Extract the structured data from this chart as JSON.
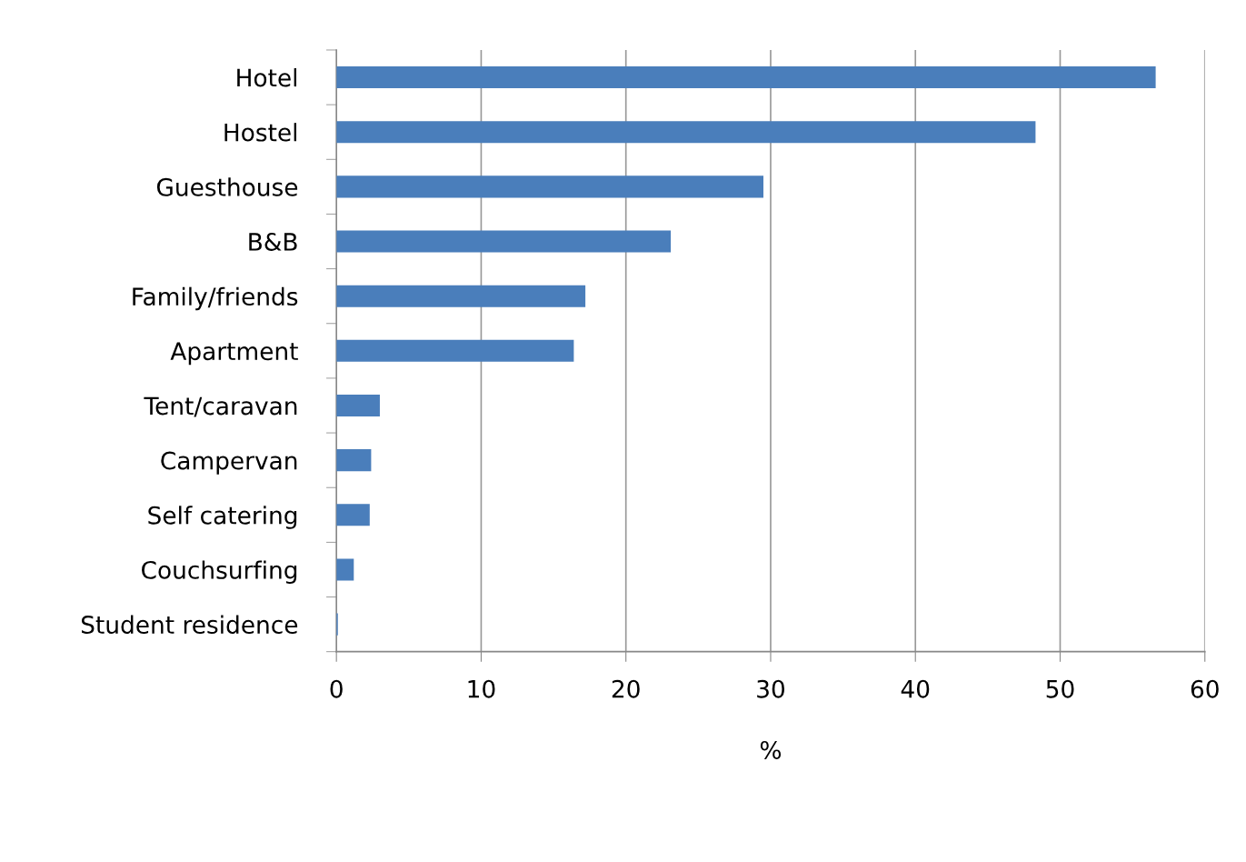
{
  "chart_data": {
    "type": "bar",
    "orientation": "horizontal",
    "xlabel": "%",
    "categories": [
      "Hotel",
      "Hostel",
      "Guesthouse",
      "B&B",
      "Family/friends",
      "Apartment",
      "Tent/caravan",
      "Campervan",
      "Self catering",
      "Couchsurfing",
      "Student residence"
    ],
    "values": [
      56.6,
      48.3,
      29.5,
      23.1,
      17.2,
      16.4,
      3.0,
      2.4,
      2.3,
      1.2,
      0.1
    ],
    "color": "#4a7ebb",
    "xlim": [
      0,
      60
    ],
    "xticks": [
      0,
      10,
      20,
      30,
      40,
      50,
      60
    ],
    "grid": "x"
  }
}
